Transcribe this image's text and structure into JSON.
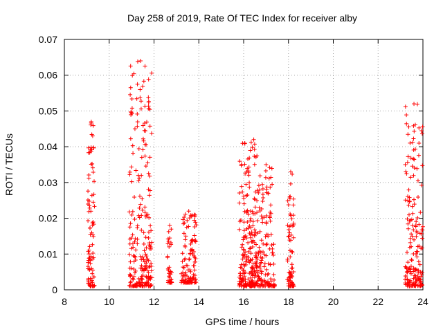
{
  "chart_data": {
    "type": "scatter",
    "title": "Day 258 of 2019, Rate Of TEC Index for receiver alby",
    "xlabel": "GPS time / hours",
    "ylabel": "ROTI / TECUs",
    "xlim": [
      8,
      24
    ],
    "ylim": [
      0,
      0.07
    ],
    "x_ticks": [
      8,
      10,
      12,
      14,
      16,
      18,
      20,
      22,
      24
    ],
    "x_tick_labels": [
      "8",
      "10",
      "12",
      "14",
      "16",
      "18",
      "20",
      "22",
      "24"
    ],
    "y_ticks": [
      0,
      0.01,
      0.02,
      0.03,
      0.04,
      0.05,
      0.06,
      0.07
    ],
    "y_tick_labels": [
      "0",
      "0.01",
      "0.02",
      "0.03",
      "0.04",
      "0.05",
      "0.06",
      "0.07"
    ],
    "grid": true,
    "marker": "+",
    "color": "#ff0000",
    "clusters": [
      {
        "x_start": 9.05,
        "x_end": 9.35,
        "y_min": 0.001,
        "y_max": 0.047,
        "n": 90
      },
      {
        "x_start": 10.9,
        "x_end": 11.9,
        "y_min": 0.001,
        "y_max": 0.064,
        "n": 240
      },
      {
        "x_start": 12.6,
        "x_end": 12.8,
        "y_min": 0.002,
        "y_max": 0.018,
        "n": 35
      },
      {
        "x_start": 13.2,
        "x_end": 13.9,
        "y_min": 0.002,
        "y_max": 0.022,
        "n": 120
      },
      {
        "x_start": 15.8,
        "x_end": 16.3,
        "y_min": 0.001,
        "y_max": 0.041,
        "n": 130
      },
      {
        "x_start": 16.3,
        "x_end": 16.6,
        "y_min": 0.001,
        "y_max": 0.042,
        "n": 100
      },
      {
        "x_start": 16.6,
        "x_end": 17.4,
        "y_min": 0.001,
        "y_max": 0.035,
        "n": 150
      },
      {
        "x_start": 17.95,
        "x_end": 18.25,
        "y_min": 0.001,
        "y_max": 0.033,
        "n": 70
      },
      {
        "x_start": 23.2,
        "x_end": 24.0,
        "y_min": 0.001,
        "y_max": 0.052,
        "n": 180
      }
    ]
  }
}
